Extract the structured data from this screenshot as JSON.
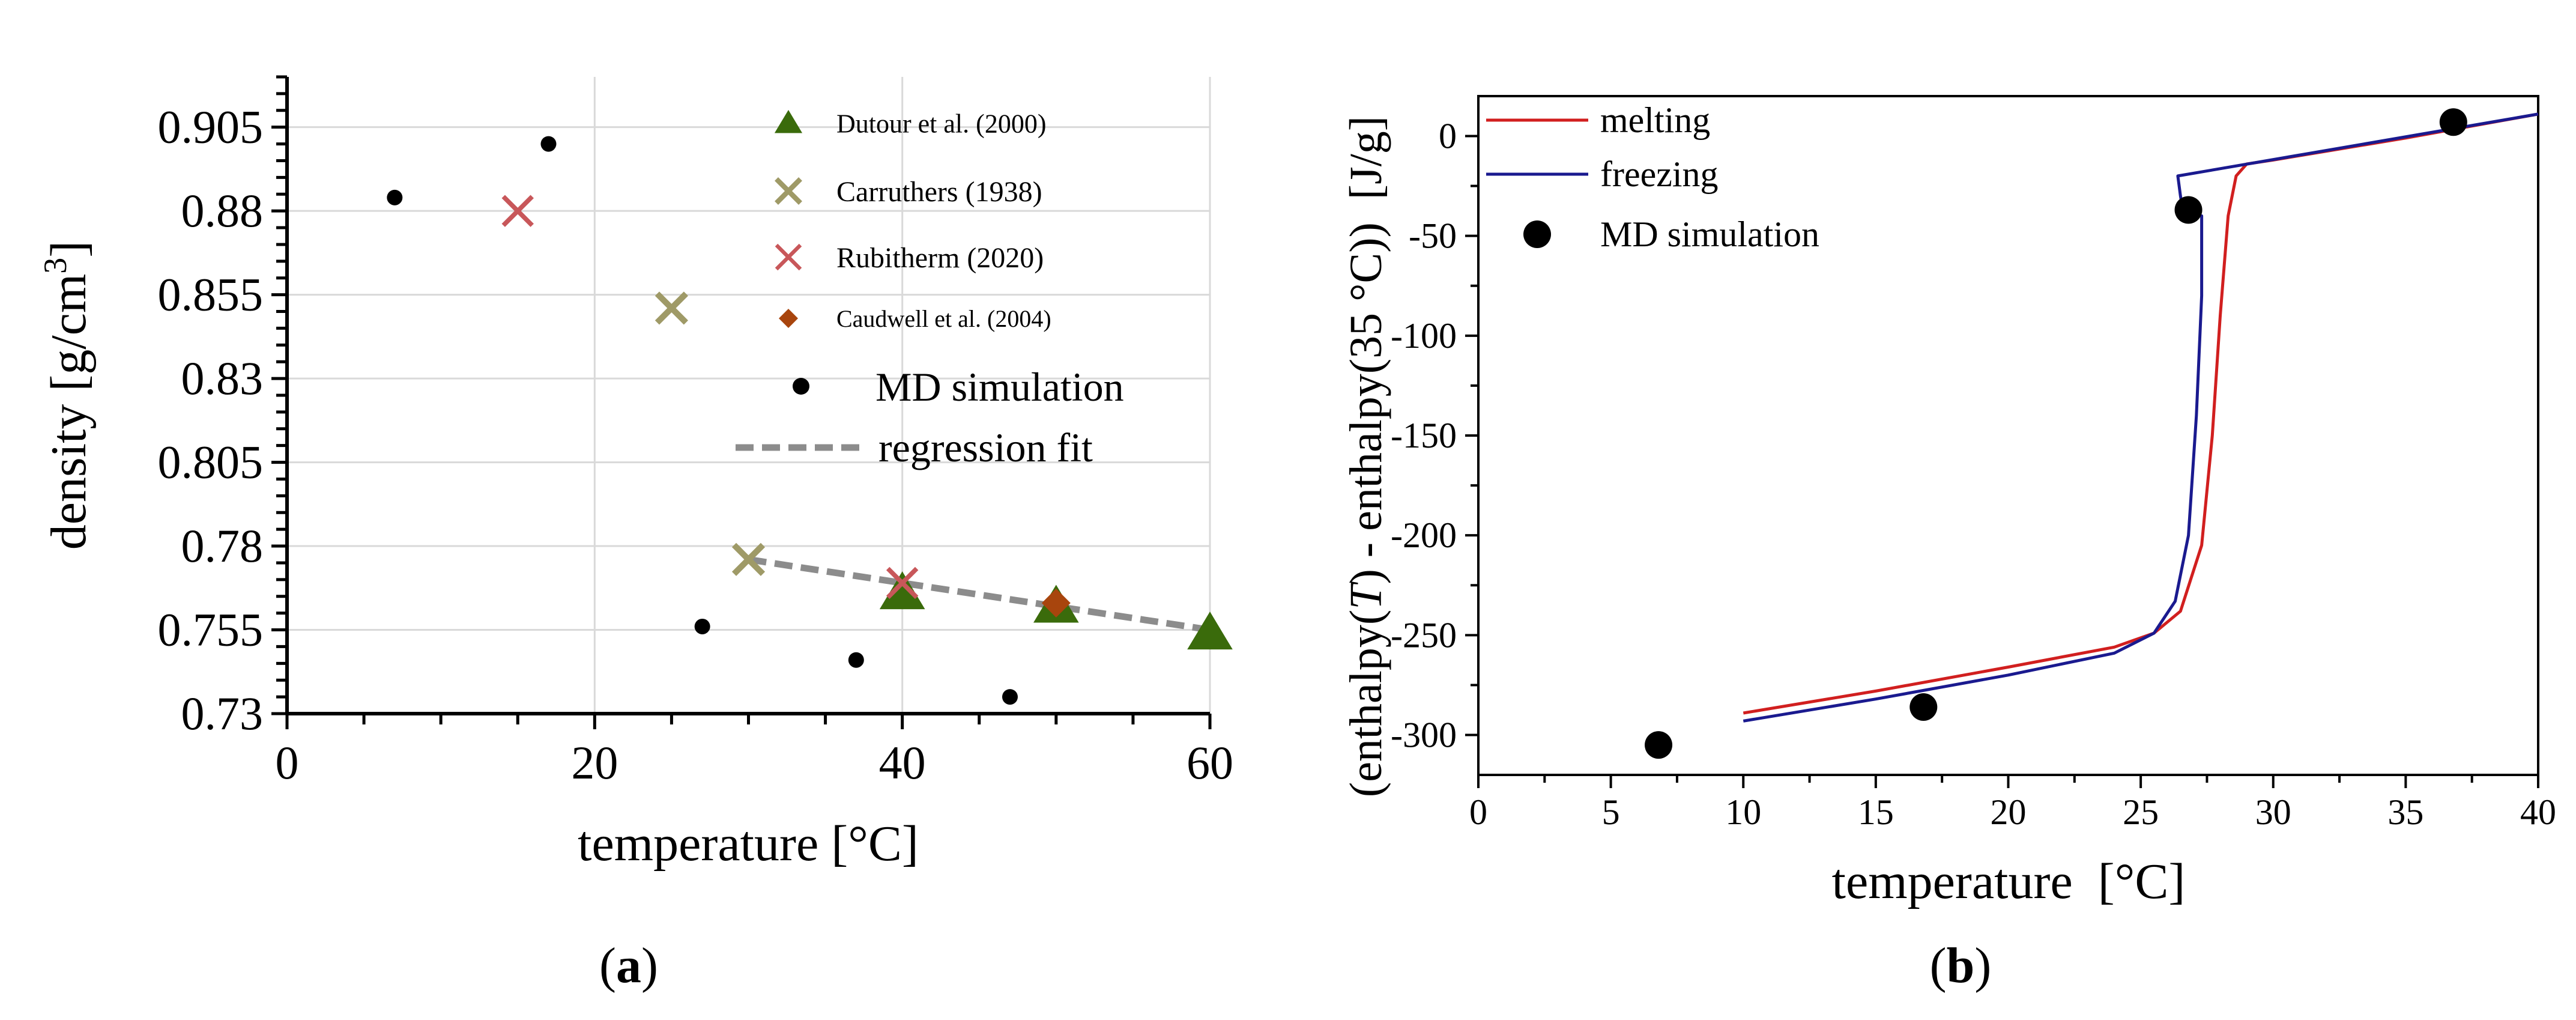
{
  "colors": {
    "dutour": "#3a6b0b",
    "carruthers": "#9f9a67",
    "rubitherm": "#c8575a",
    "caudwell": "#a8450d",
    "md": "#000000",
    "regression": "#8c8c8c",
    "melting": "#d11f1f",
    "freezing": "#1a1a8f",
    "grid": "#d9d9d9"
  },
  "panels": {
    "a": {
      "caption_open": "(",
      "caption_letter": "a",
      "caption_close": ")"
    },
    "b": {
      "caption_open": "(",
      "caption_letter": "b",
      "caption_close": ")"
    }
  },
  "chart_data": [
    {
      "id": "a",
      "type": "scatter",
      "xlabel": "temperature [°C]",
      "ylabel_main": "density [g/cm",
      "ylabel_sup": "3",
      "ylabel_end": "]",
      "xlim": [
        0,
        60
      ],
      "ylim": [
        0.73,
        0.92
      ],
      "xticks": [
        0,
        20,
        40,
        60
      ],
      "xtick_labels": [
        "0",
        "20",
        "40",
        "60"
      ],
      "yticks": [
        0.73,
        0.755,
        0.78,
        0.805,
        0.83,
        0.855,
        0.88,
        0.905
      ],
      "ytick_labels": [
        "0.73",
        "0.755",
        "0.78",
        "0.805",
        "0.83",
        "0.855",
        "0.88",
        "0.905"
      ],
      "grid": true,
      "legend_position": "top-right",
      "series": [
        {
          "key": "dutour",
          "name": "Dutour et al. (2000)",
          "marker": "triangle",
          "x": [
            40,
            50,
            60
          ],
          "y": [
            0.766,
            0.762,
            0.754
          ]
        },
        {
          "key": "carruthers",
          "name": "Carruthers (1938)",
          "marker": "x-thick",
          "x": [
            25,
            30
          ],
          "y": [
            0.851,
            0.776
          ]
        },
        {
          "key": "rubitherm",
          "name": "Rubitherm (2020)",
          "marker": "x",
          "x": [
            15,
            40
          ],
          "y": [
            0.88,
            0.769
          ]
        },
        {
          "key": "caudwell",
          "name": "Caudwell et al. (2004)",
          "marker": "diamond",
          "x": [
            50
          ],
          "y": [
            0.763
          ]
        },
        {
          "key": "md",
          "name": "MD simulation",
          "marker": "dot",
          "x": [
            7,
            17,
            27,
            37,
            47
          ],
          "y": [
            0.884,
            0.9,
            0.756,
            0.746,
            0.735
          ]
        }
      ],
      "regression": {
        "name": "regression fit",
        "x": [
          30,
          60
        ],
        "y": [
          0.776,
          0.755
        ]
      }
    },
    {
      "id": "b",
      "type": "line",
      "xlabel": "temperature  [°C]",
      "ylabel_pre": "(enthalpy(",
      "ylabel_var": "T",
      "ylabel_post": ") - enthalpy(35 °C))  [J/g]",
      "xlim": [
        0,
        40
      ],
      "ylim": [
        -320,
        20
      ],
      "xticks": [
        0,
        5,
        10,
        15,
        20,
        25,
        30,
        35,
        40
      ],
      "xtick_labels": [
        "0",
        "5",
        "10",
        "15",
        "20",
        "25",
        "30",
        "35",
        "40"
      ],
      "yticks": [
        -300,
        -250,
        -200,
        -150,
        -100,
        -50,
        0
      ],
      "ytick_labels": [
        "-300",
        "-250",
        "-200",
        "-150",
        "-100",
        "-50",
        "0"
      ],
      "grid": false,
      "legend_position": "top-left",
      "series": [
        {
          "key": "melting",
          "name": "melting",
          "x": [
            10,
            15,
            20,
            24,
            25.5,
            26.5,
            27.3,
            27.7,
            28.0,
            28.3,
            28.6,
            29.0,
            30,
            35,
            40
          ],
          "y": [
            -289,
            -278,
            -266,
            -256,
            -249,
            -238,
            -205,
            -150,
            -90,
            -40,
            -20,
            -14,
            -12,
            -1,
            11
          ]
        },
        {
          "key": "freezing",
          "name": "freezing",
          "x": [
            10,
            15,
            20,
            24,
            25.5,
            26.3,
            26.8,
            27.1,
            27.3,
            27.3,
            26.6,
            26.5,
            26.4,
            40
          ],
          "y": [
            -293,
            -282,
            -270,
            -259,
            -249,
            -233,
            -200,
            -140,
            -80,
            -40,
            -38,
            -30,
            -20,
            11
          ]
        },
        {
          "key": "md",
          "name": "MD simulation",
          "x": [
            6.8,
            16.8,
            26.8,
            36.8
          ],
          "y": [
            -305,
            -286,
            -37,
            7
          ]
        }
      ]
    }
  ]
}
